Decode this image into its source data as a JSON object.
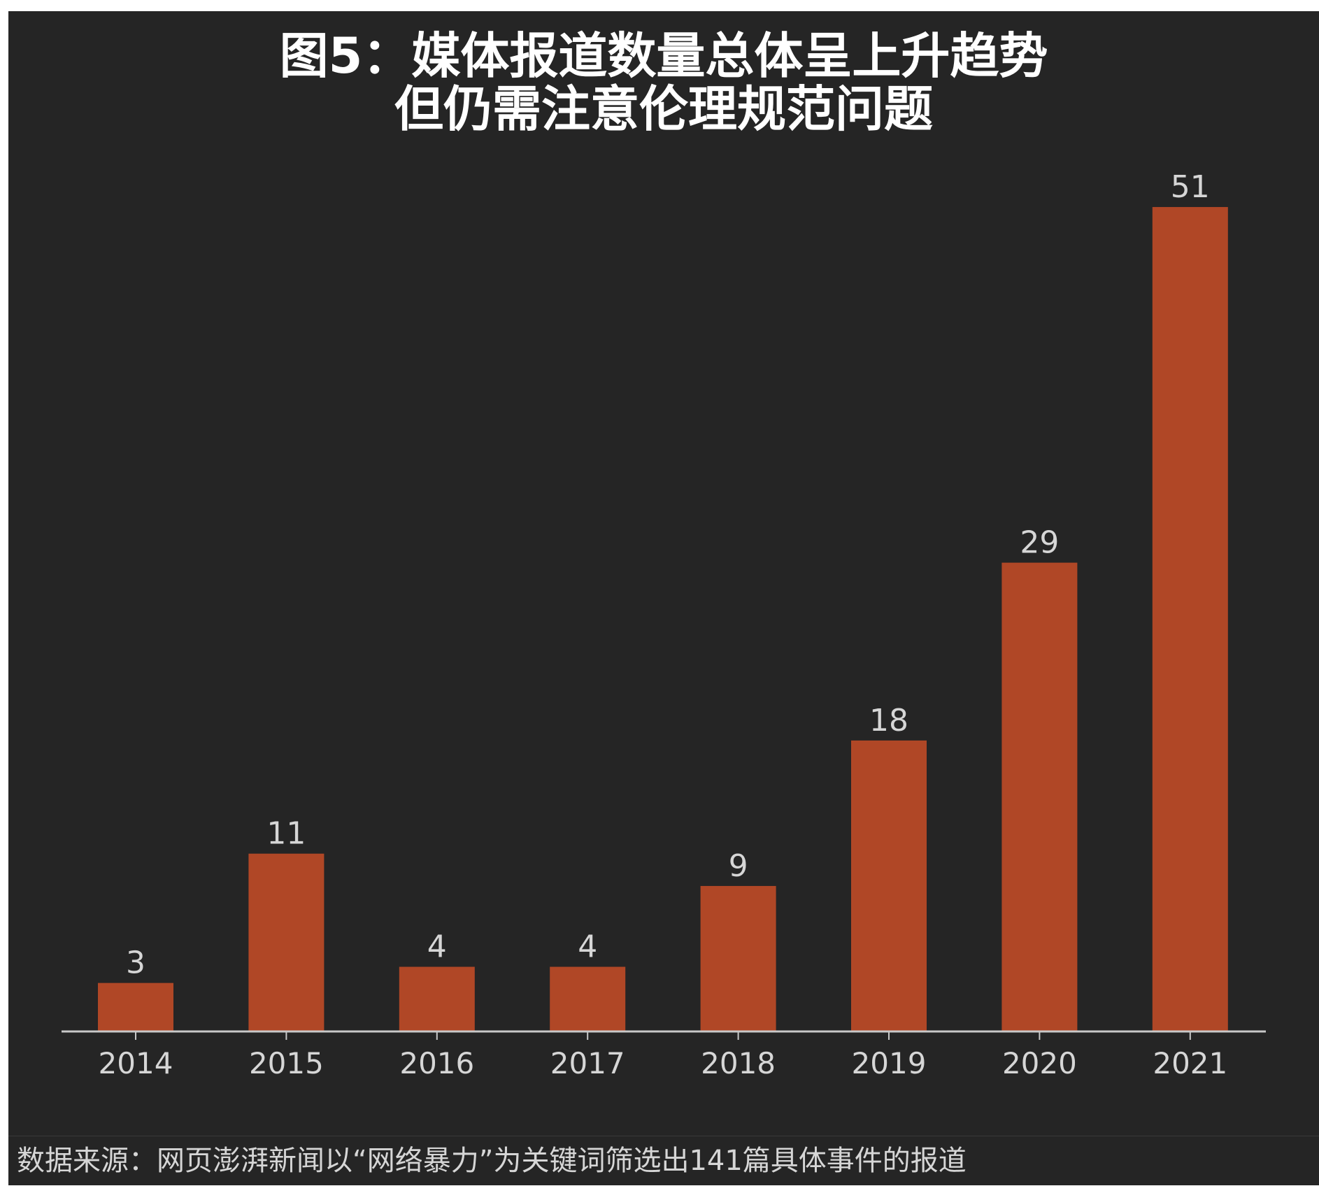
{
  "chart_data": {
    "type": "bar",
    "title": "图5：媒体报道数量总体呈上升趋势",
    "subtitle": "但仍需注意伦理规范问题",
    "categories": [
      "2014",
      "2015",
      "2016",
      "2017",
      "2018",
      "2019",
      "2020",
      "2021"
    ],
    "values": [
      3,
      11,
      4,
      4,
      9,
      18,
      29,
      51
    ],
    "data_labels": [
      "3",
      "11",
      "4",
      "4",
      "9",
      "18",
      "29",
      "51"
    ],
    "xlabel": "",
    "ylabel": "",
    "ylim": [
      0,
      60
    ],
    "grid": false,
    "legend": "none",
    "colors": {
      "bar": "#b04726",
      "background": "#252525",
      "text": "#d6d6d6",
      "axis": "#c8c8c8",
      "title": "#ffffff"
    }
  },
  "source": "数据来源：网页澎湃新闻以“网络暴力”为关键词筛选出141篇具体事件的报道"
}
